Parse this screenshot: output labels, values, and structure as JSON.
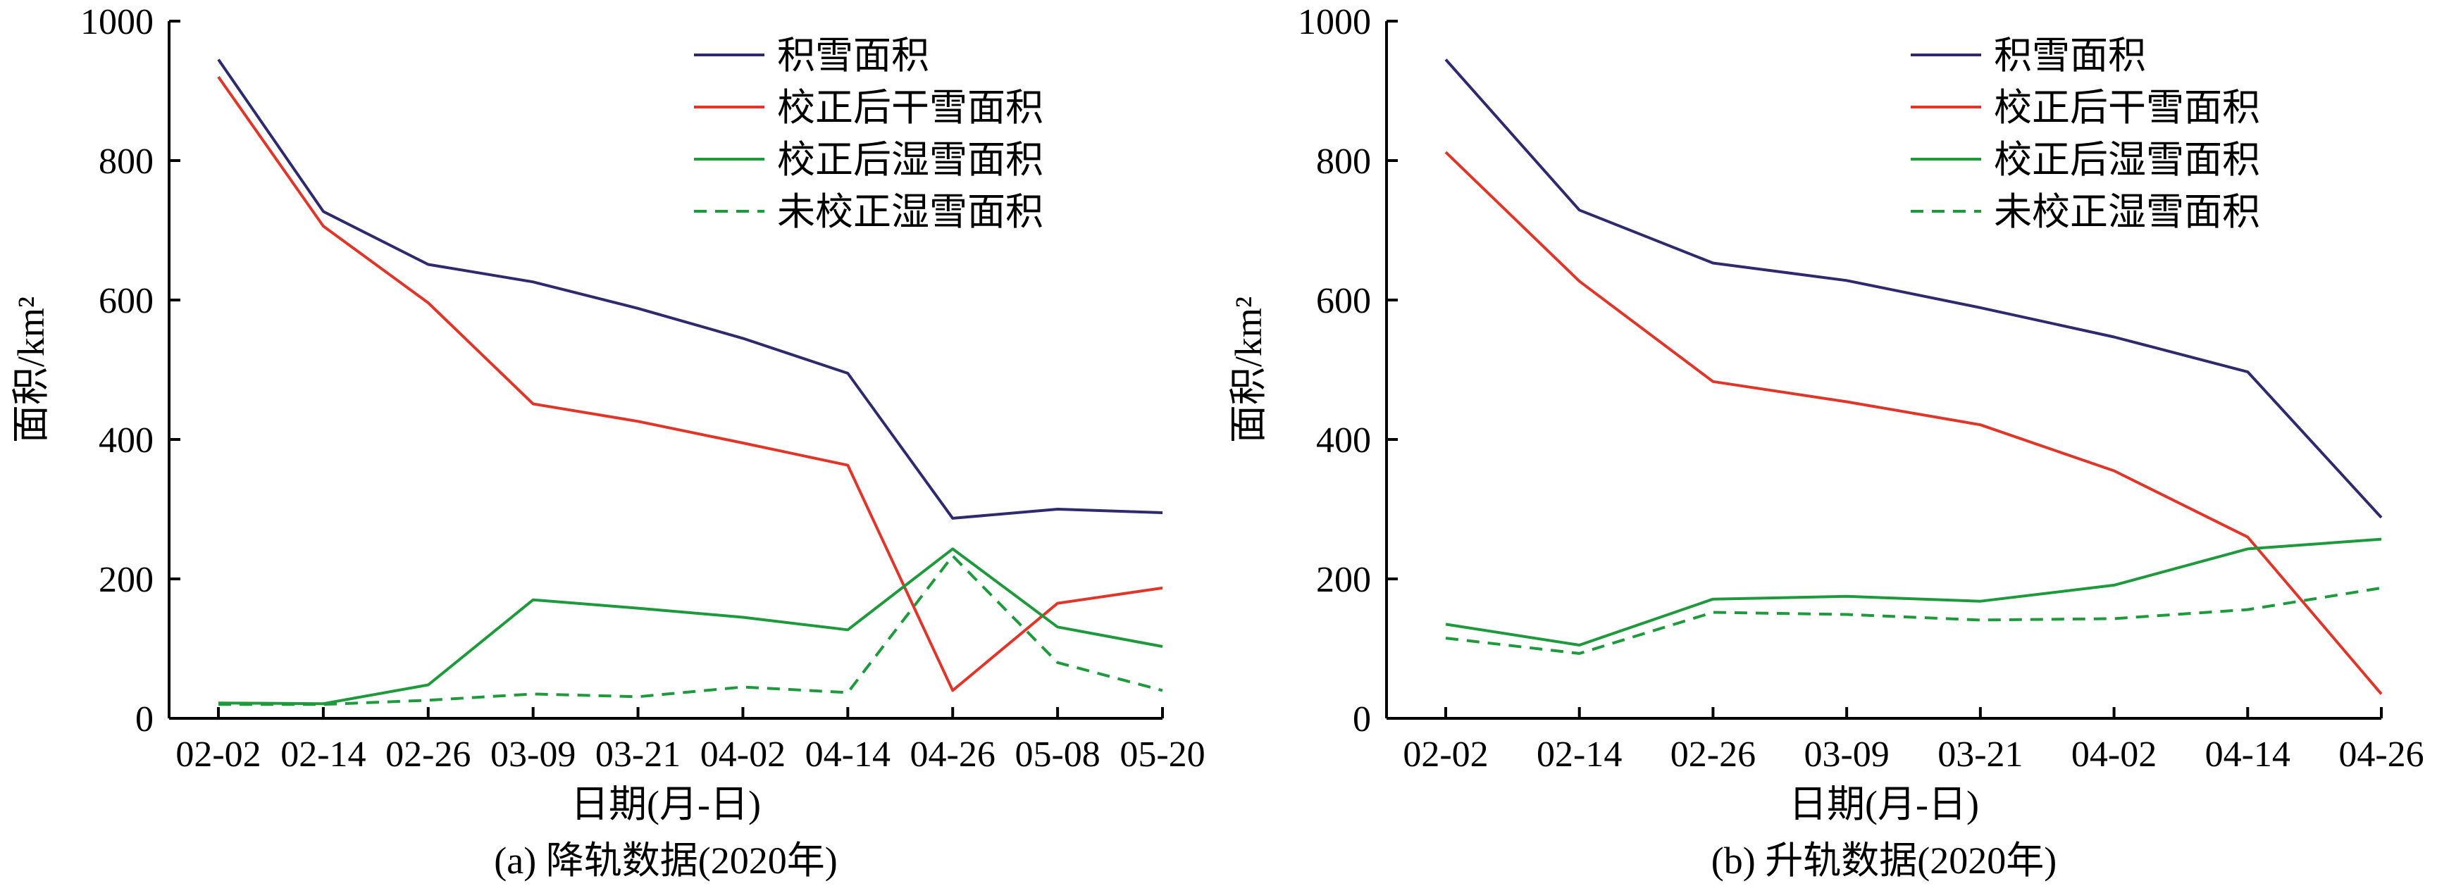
{
  "colors": {
    "snow": "#2e2a6e",
    "dry": "#e0362a",
    "wet": "#1e9a3c"
  },
  "chart_data": [
    {
      "type": "line",
      "caption": "(a) 降轨数据(2020年)",
      "xlabel": "日期(月-日)",
      "ylabel": "面积/km²",
      "ylim": [
        0,
        1000
      ],
      "yticks": [
        "0",
        "200",
        "400",
        "600",
        "800",
        "1000"
      ],
      "categories": [
        "02-02",
        "02-14",
        "02-26",
        "03-09",
        "03-21",
        "04-02",
        "04-14",
        "04-26",
        "05-08",
        "05-20"
      ],
      "series": [
        {
          "name": "积雪面积",
          "color_key": "snow",
          "dashed": false,
          "values": [
            945,
            727,
            651,
            626,
            588,
            545,
            495,
            287,
            300,
            295
          ]
        },
        {
          "name": "校正后干雪面积",
          "color_key": "dry",
          "dashed": false,
          "values": [
            920,
            706,
            596,
            451,
            426,
            395,
            363,
            40,
            165,
            187
          ]
        },
        {
          "name": "校正后湿雪面积",
          "color_key": "wet",
          "dashed": false,
          "values": [
            22,
            21,
            48,
            170,
            158,
            145,
            127,
            243,
            131,
            103
          ]
        },
        {
          "name": "未校正湿雪面积",
          "color_key": "wet",
          "dashed": true,
          "values": [
            20,
            20,
            26,
            35,
            31,
            45,
            37,
            233,
            80,
            40
          ]
        }
      ]
    },
    {
      "type": "line",
      "caption": "(b) 升轨数据(2020年)",
      "xlabel": "日期(月-日)",
      "ylabel": "面积/km²",
      "ylim": [
        0,
        1000
      ],
      "yticks": [
        "0",
        "200",
        "400",
        "600",
        "800",
        "1000"
      ],
      "categories": [
        "02-02",
        "02-14",
        "02-26",
        "03-09",
        "03-21",
        "04-02",
        "04-14",
        "04-26"
      ],
      "series": [
        {
          "name": "积雪面积",
          "color_key": "snow",
          "dashed": false,
          "values": [
            945,
            729,
            653,
            628,
            589,
            547,
            497,
            288
          ]
        },
        {
          "name": "校正后干雪面积",
          "color_key": "dry",
          "dashed": false,
          "values": [
            812,
            627,
            483,
            454,
            421,
            355,
            260,
            35
          ]
        },
        {
          "name": "校正后湿雪面积",
          "color_key": "wet",
          "dashed": false,
          "values": [
            135,
            105,
            171,
            175,
            168,
            191,
            243,
            257
          ]
        },
        {
          "name": "未校正湿雪面积",
          "color_key": "wet",
          "dashed": true,
          "values": [
            115,
            93,
            152,
            149,
            141,
            143,
            156,
            187
          ]
        }
      ]
    }
  ]
}
